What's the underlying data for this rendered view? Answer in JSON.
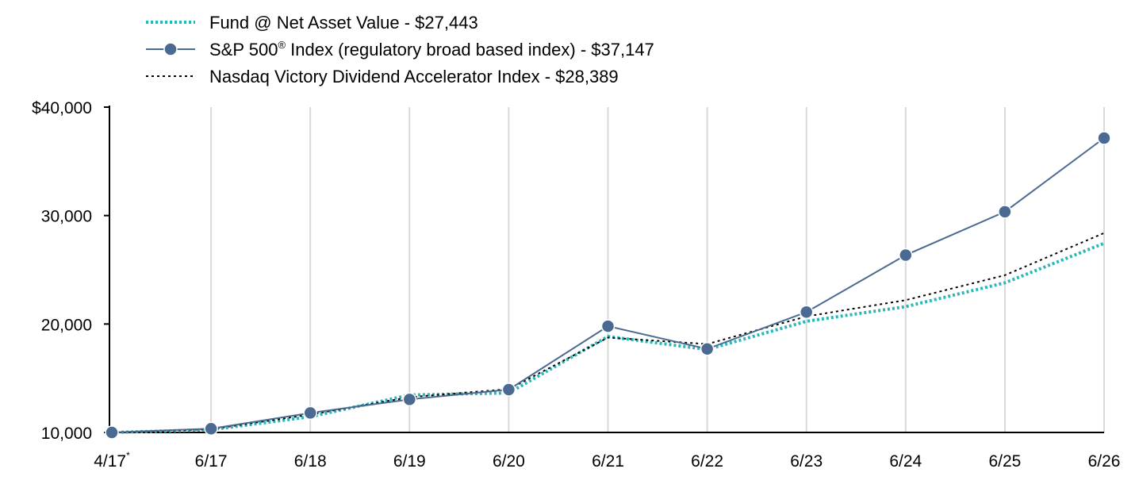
{
  "chart_data": {
    "type": "line",
    "categories": [
      "4/17",
      "6/17",
      "6/18",
      "6/19",
      "6/20",
      "6/21",
      "6/22",
      "6/23",
      "6/24",
      "6/25",
      "6/26"
    ],
    "first_category_marker": "*",
    "series": [
      {
        "name": "Fund @ Net Asset Value - $27,443",
        "values": [
          10000,
          10250,
          11450,
          13450,
          13650,
          18850,
          17650,
          20250,
          21600,
          23800,
          27443
        ],
        "color": "#2ab7b9",
        "style": "dotted-thick"
      },
      {
        "name": "S&P 500® Index (regulatory broad based index) - $37,147",
        "values": [
          10000,
          10350,
          11800,
          13050,
          13950,
          19800,
          17700,
          21100,
          26350,
          30350,
          37147
        ],
        "color": "#4a6a91",
        "style": "solid-with-markers"
      },
      {
        "name": "Nasdaq Victory Dividend Accelerator Index - $28,389",
        "values": [
          10000,
          10300,
          11650,
          13250,
          14000,
          18750,
          18150,
          20700,
          22200,
          24500,
          28389
        ],
        "color": "#000000",
        "style": "dotted-thin"
      }
    ],
    "y_ticks": [
      10000,
      20000,
      30000,
      40000
    ],
    "y_tick_labels": [
      "10,000",
      "20,000",
      "30,000",
      "$40,000"
    ],
    "ylim": [
      10000,
      40000
    ],
    "grid": "vertical",
    "legend_position": "top-left",
    "title": "",
    "xlabel": "",
    "ylabel": ""
  }
}
